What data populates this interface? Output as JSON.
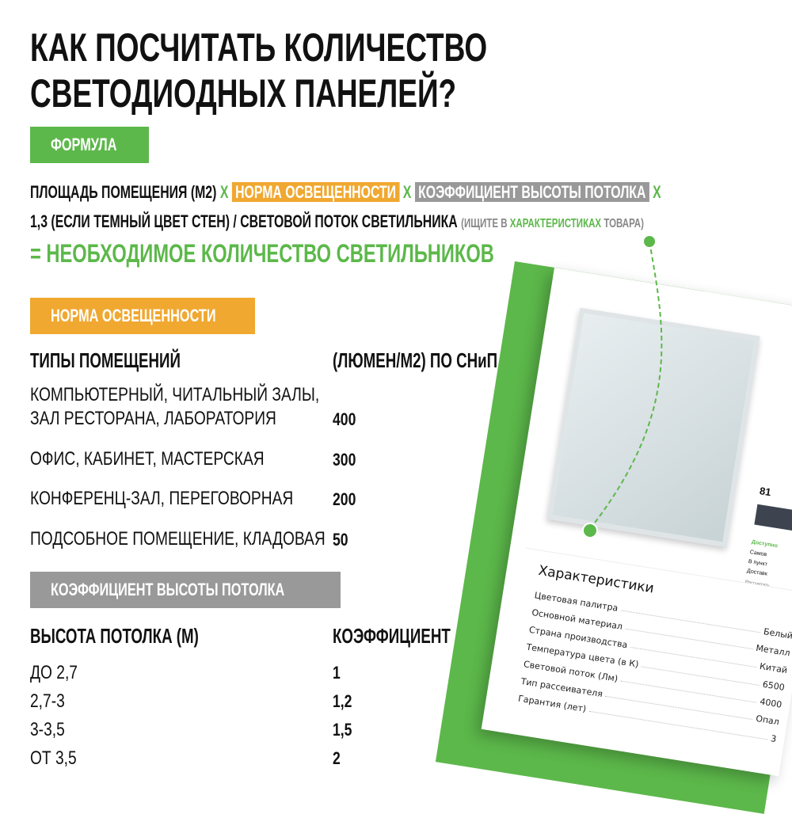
{
  "title": {
    "line1": "КАК ПОСЧИТАТЬ КОЛИЧЕСТВО",
    "line2": "СВЕТОДИОДНЫХ ПАНЕЛЕЙ?"
  },
  "formula": {
    "badge": "ФОРМУЛА",
    "area": "ПЛОЩАДЬ ПОМЕЩЕНИЯ (М2)",
    "x": "X",
    "norm": "НОРМА ОСВЕЩЕННОСТИ",
    "coef": "КОЭФФИЦИЕНТ ВЫСОТЫ ПОТОЛКА",
    "line2": "1,3 (ЕСЛИ ТЕМНЫЙ ЦВЕТ СТЕН) / СВЕТОВОЙ ПОТОК СВЕТИЛЬНИКА",
    "hint_a": "(ИЩИТЕ В ",
    "hint_b": "ХАРАКТЕРИСТИКАХ",
    "hint_c": " ТОВАРА)",
    "result": "= НЕОБХОДИМОЕ КОЛИЧЕСТВО СВЕТИЛЬНИКОВ"
  },
  "norm": {
    "badge": "НОРМА ОСВЕЩЕННОСТИ",
    "col1": "ТИПЫ ПОМЕЩЕНИЙ",
    "col2": "(ЛЮМЕН/М2) ПО СНиП",
    "rows": [
      {
        "a": "КОМПЬЮТЕРНЫЙ, ЧИТАЛЬНЫЙ ЗАЛЫ,",
        "b": "ЗАЛ РЕСТОРАНА, ЛАБОРАТОРИЯ",
        "v": "400"
      },
      {
        "a": "ОФИС, КАБИНЕТ, МАСТЕРСКАЯ",
        "v": "300"
      },
      {
        "a": "КОНФЕРЕНЦ-ЗАЛ, ПЕРЕГОВОРНАЯ",
        "v": "200"
      },
      {
        "a": "ПОДСОБНОЕ ПОМЕЩЕНИЕ, КЛАДОВАЯ",
        "v": "50"
      }
    ]
  },
  "coef": {
    "badge": "КОЭФФИЦИЕНТ ВЫСОТЫ ПОТОЛКА",
    "col1": "ВЫСОТА ПОТОЛКА (М)",
    "col2": "КОЭФФИЦИЕНТ",
    "rows": [
      {
        "a": "ДО 2,7",
        "v": "1"
      },
      {
        "a": "2,7-3",
        "v": "1,2"
      },
      {
        "a": "3-3,5",
        "v": "1,5"
      },
      {
        "a": "ОТ 3,5",
        "v": "2"
      }
    ]
  },
  "card": {
    "price": "81",
    "avail": "Доступно",
    "opt1": "Самов",
    "opt2": "В пункт",
    "opt3": "Доставк",
    "calc": "Рассчитать",
    "chars_title": "Характеристики",
    "chars": [
      {
        "k": "Цветовая палитра",
        "v": "Белый"
      },
      {
        "k": "Основной материал",
        "v": "Металл"
      },
      {
        "k": "Страна производства",
        "v": "Китай"
      },
      {
        "k": "Температура цвета (в К)",
        "v": "6500"
      },
      {
        "k": "Световой поток (Лм)",
        "v": "4000"
      },
      {
        "k": "Тип рассеивателя",
        "v": "Опал"
      },
      {
        "k": "Гарантия (лет)",
        "v": "3"
      }
    ]
  },
  "colors": {
    "green": "#5cb84a",
    "orange": "#f0a830",
    "gray": "#999999"
  }
}
